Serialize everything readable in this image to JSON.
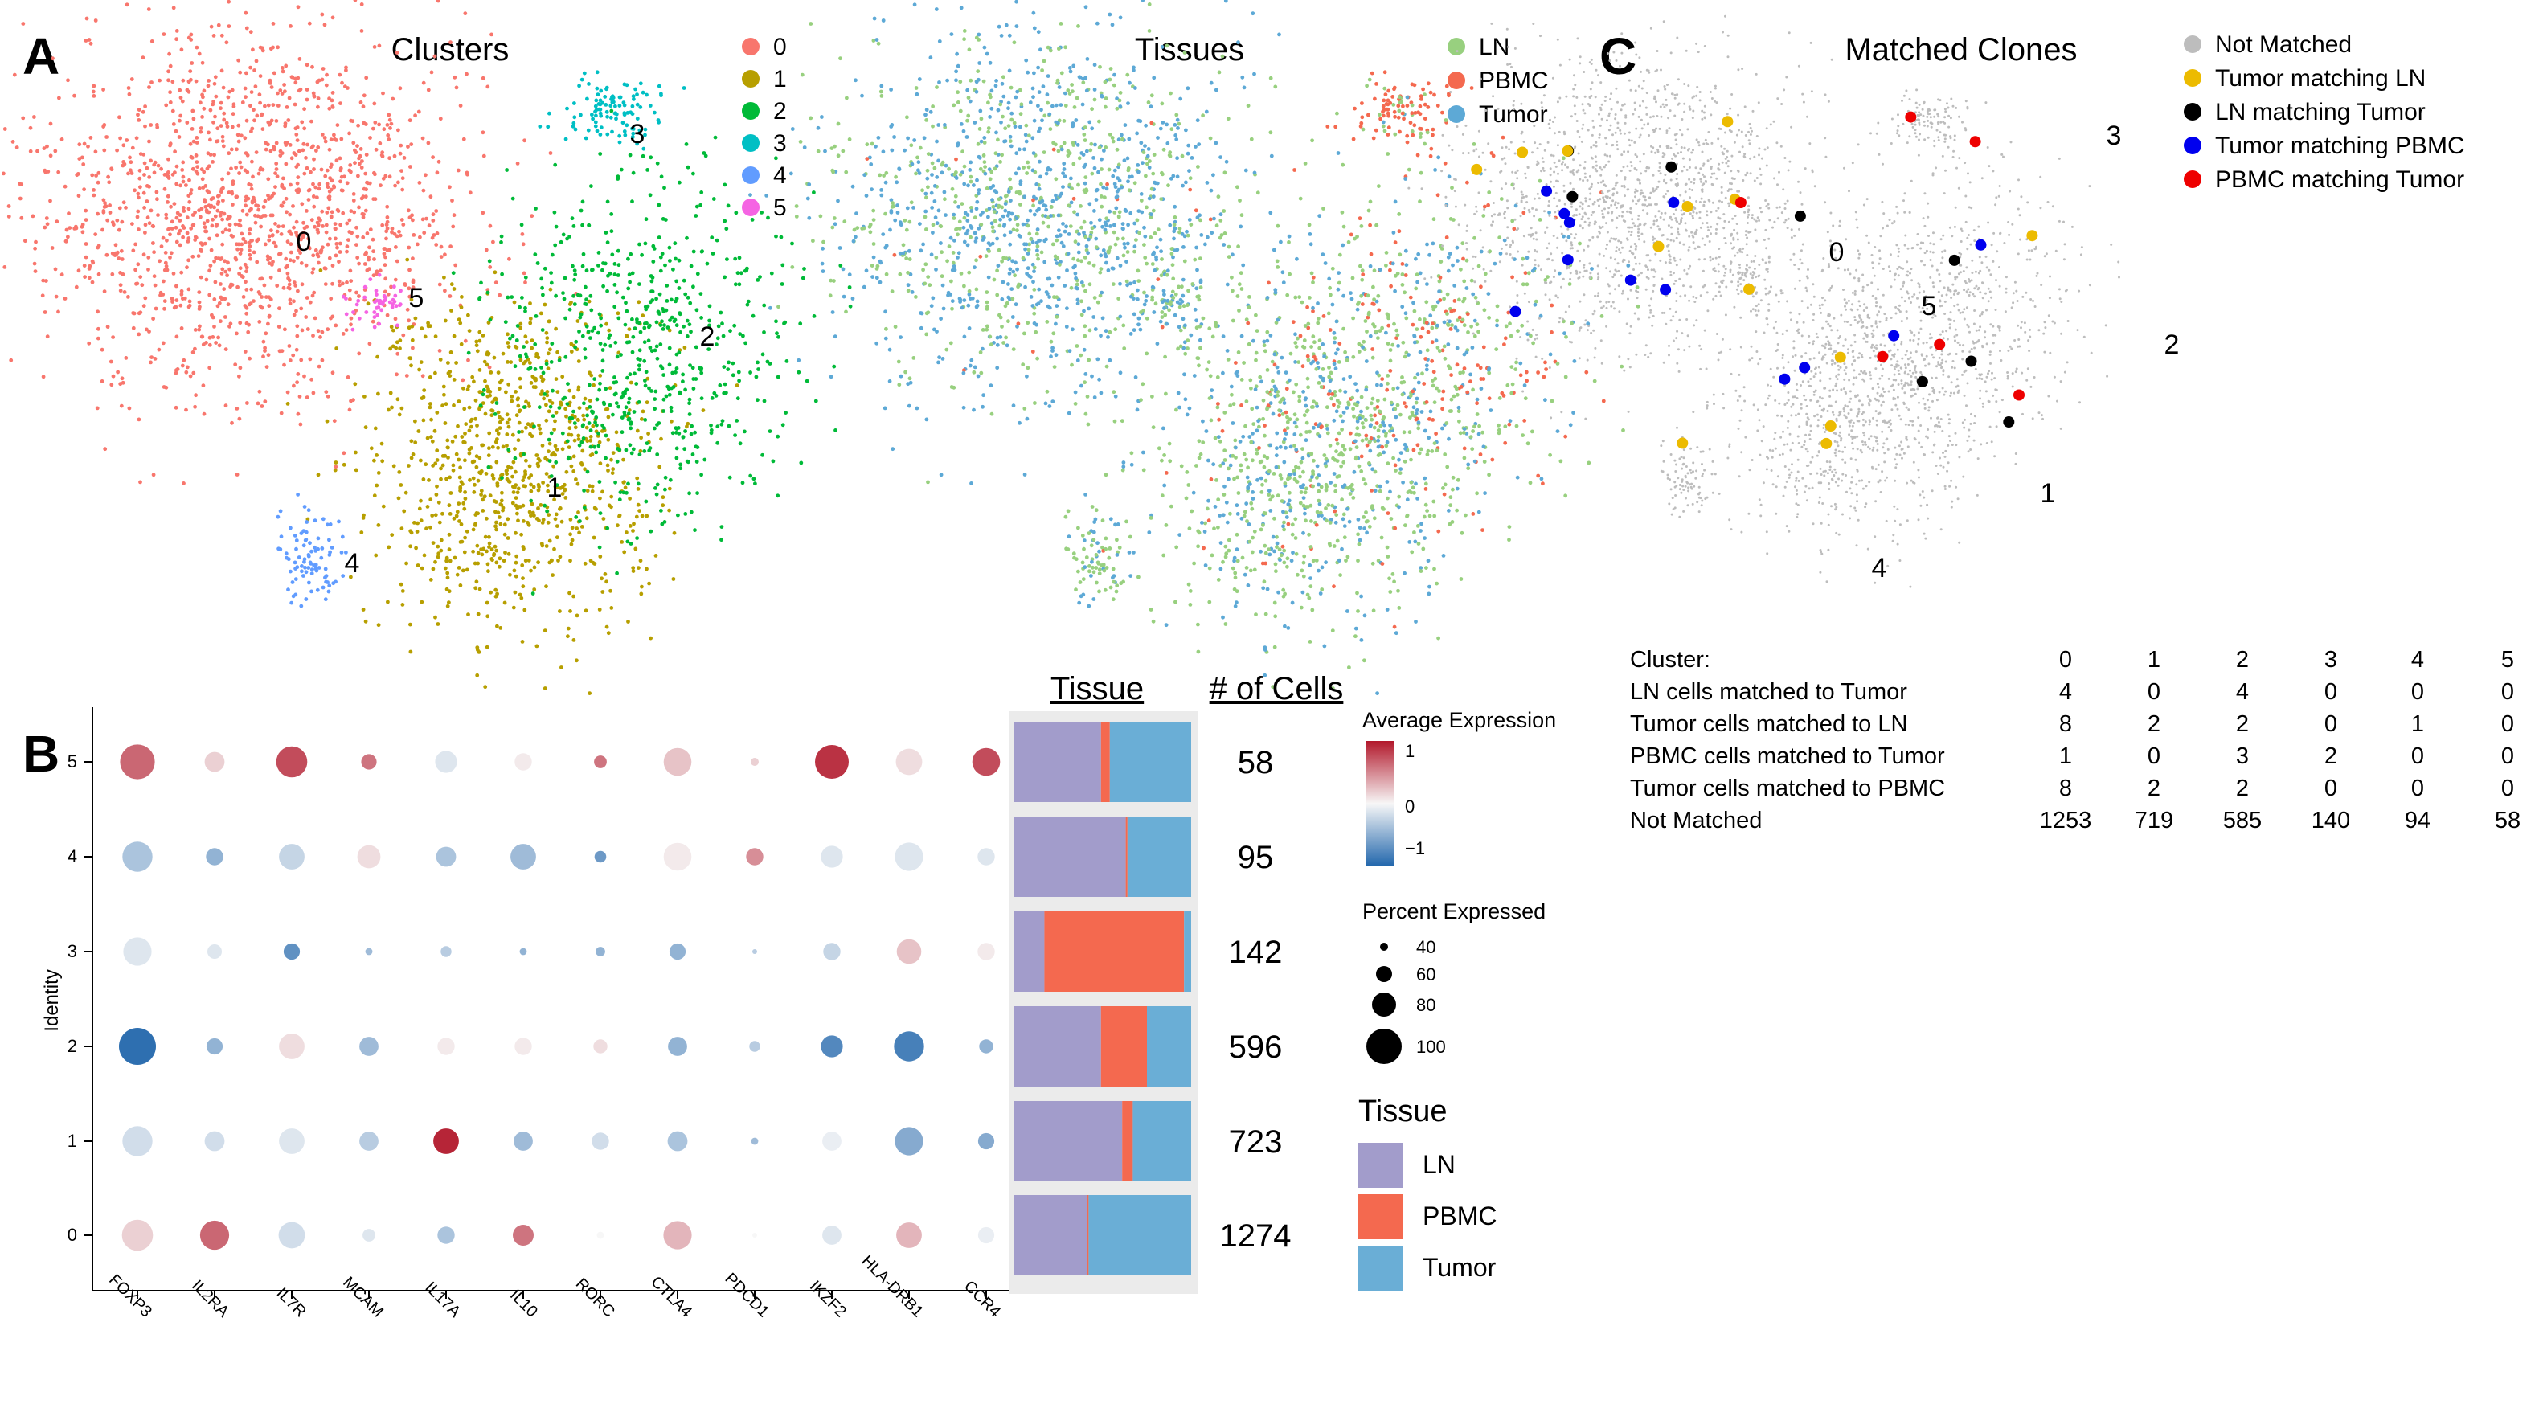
{
  "panel_letters": [
    "A",
    "B",
    "C"
  ],
  "chart_data": [
    {
      "type": "scatter",
      "title": "Clusters",
      "legend": {
        "position": "right",
        "entries": [
          {
            "label": "0",
            "color": "#f8766d"
          },
          {
            "label": "1",
            "color": "#b79f00"
          },
          {
            "label": "2",
            "color": "#00ba38"
          },
          {
            "label": "3",
            "color": "#00bfc4"
          },
          {
            "label": "4",
            "color": "#619cff"
          },
          {
            "label": "5",
            "color": "#f564e3"
          }
        ]
      },
      "cluster_labels": [
        "0",
        "1",
        "2",
        "3",
        "4",
        "5"
      ]
    },
    {
      "type": "scatter",
      "title": "Tissues",
      "legend": {
        "position": "right",
        "entries": [
          {
            "label": "LN",
            "color": "#98d07f"
          },
          {
            "label": "PBMC",
            "color": "#f4694f"
          },
          {
            "label": "Tumor",
            "color": "#5da9d6"
          }
        ]
      }
    },
    {
      "type": "scatter",
      "title": "Matched Clones",
      "legend": {
        "position": "right",
        "entries": [
          {
            "label": "Not Matched",
            "color": "#bdbdbd"
          },
          {
            "label": "Tumor matching LN",
            "color": "#ecbb00"
          },
          {
            "label": "LN matching Tumor",
            "color": "#000000"
          },
          {
            "label": "Tumor matching PBMC",
            "color": "#0000ee"
          },
          {
            "label": "PBMC matching Tumor",
            "color": "#ee0000"
          }
        ]
      },
      "cluster_labels": [
        "0",
        "1",
        "2",
        "3",
        "4",
        "5"
      ]
    },
    {
      "type": "table",
      "title": "Cluster:",
      "columns": [
        "0",
        "1",
        "2",
        "3",
        "4",
        "5"
      ],
      "rows": [
        {
          "label": "LN cells matched to Tumor",
          "values": [
            "4",
            "0",
            "4",
            "0",
            "0",
            "0"
          ]
        },
        {
          "label": "Tumor cells matched to LN",
          "values": [
            "8",
            "2",
            "2",
            "0",
            "1",
            "0"
          ]
        },
        {
          "label": "PBMC cells matched to Tumor",
          "values": [
            "1",
            "0",
            "3",
            "2",
            "0",
            "0"
          ]
        },
        {
          "label": "Tumor cells matched to PBMC",
          "values": [
            "8",
            "2",
            "2",
            "0",
            "0",
            "0"
          ]
        },
        {
          "label": "Not Matched",
          "values": [
            "1253",
            "719",
            "585",
            "140",
            "94",
            "58"
          ]
        }
      ]
    },
    {
      "type": "dot",
      "ylabel": "Identity",
      "genes": [
        "FOXP3",
        "IL2RA",
        "IL7R",
        "MCAM",
        "IL17A",
        "IL10",
        "RORC",
        "CTLA4",
        "PDCD1",
        "IKZF2",
        "HLA-DRB1",
        "CCR4"
      ],
      "identities": [
        "5",
        "4",
        "3",
        "2",
        "1",
        "0"
      ],
      "avg_expression": [
        [
          1.1,
          0.3,
          1.3,
          1.0,
          -0.2,
          0.1,
          1.0,
          0.4,
          0.3,
          1.5,
          0.2,
          1.3
        ],
        [
          -0.6,
          -0.8,
          -0.4,
          0.2,
          -0.6,
          -0.7,
          -1.1,
          0.1,
          0.8,
          -0.2,
          -0.2,
          -0.2
        ],
        [
          -0.2,
          -0.2,
          -1.2,
          -0.7,
          -0.5,
          -0.8,
          -0.8,
          -0.8,
          -0.5,
          -0.4,
          0.4,
          0.1
        ],
        [
          -1.6,
          -0.8,
          0.2,
          -0.7,
          0.1,
          0.1,
          0.2,
          -0.8,
          -0.5,
          -1.3,
          -1.4,
          -0.8
        ],
        [
          -0.3,
          -0.3,
          -0.2,
          -0.5,
          1.6,
          -0.7,
          -0.3,
          -0.6,
          -0.7,
          -0.1,
          -0.9,
          -0.9
        ],
        [
          0.3,
          1.1,
          -0.3,
          -0.2,
          -0.6,
          1.0,
          0.0,
          0.5,
          0.0,
          -0.2,
          0.5,
          -0.1
        ]
      ],
      "pct_expressed": [
        [
          100,
          68,
          92,
          58,
          72,
          62,
          52,
          85,
          42,
          98,
          82,
          85
        ],
        [
          90,
          62,
          80,
          75,
          68,
          80,
          50,
          85,
          62,
          72,
          86,
          62
        ],
        [
          86,
          56,
          60,
          40,
          48,
          40,
          45,
          60,
          35,
          62,
          78,
          62
        ],
        [
          105,
          60,
          80,
          66,
          62,
          62,
          55,
          66,
          48,
          72,
          90,
          55
        ],
        [
          90,
          68,
          80,
          66,
          80,
          66,
          62,
          68,
          40,
          66,
          86,
          60
        ],
        [
          92,
          88,
          82,
          52,
          62,
          70,
          40,
          86,
          35,
          66,
          80,
          60
        ]
      ],
      "legend": {
        "color_title": "Average Expression",
        "color_ticks": [
          "1",
          "0",
          "−1"
        ],
        "size_title": "Percent Expressed",
        "size_ticks": [
          "40",
          "60",
          "80",
          "100"
        ]
      }
    },
    {
      "type": "bar",
      "title": "Tissue",
      "stacked": true,
      "categories": [
        "5",
        "4",
        "3",
        "2",
        "1",
        "0"
      ],
      "series": [
        {
          "name": "LN",
          "color": "#a29ccb",
          "values": [
            0.49,
            0.63,
            0.17,
            0.49,
            0.61,
            0.41
          ]
        },
        {
          "name": "PBMC",
          "color": "#f4694f",
          "values": [
            0.05,
            0.01,
            0.79,
            0.26,
            0.06,
            0.01
          ]
        },
        {
          "name": "Tumor",
          "color": "#6aaed6",
          "values": [
            0.46,
            0.36,
            0.04,
            0.25,
            0.33,
            0.58
          ]
        }
      ],
      "legend": {
        "title": "Tissue",
        "entries": [
          "LN",
          "PBMC",
          "Tumor"
        ]
      }
    },
    {
      "type": "table",
      "title": "# of Cells",
      "categories": [
        "5",
        "4",
        "3",
        "2",
        "1",
        "0"
      ],
      "values": [
        "58",
        "95",
        "142",
        "596",
        "723",
        "1274"
      ]
    }
  ]
}
